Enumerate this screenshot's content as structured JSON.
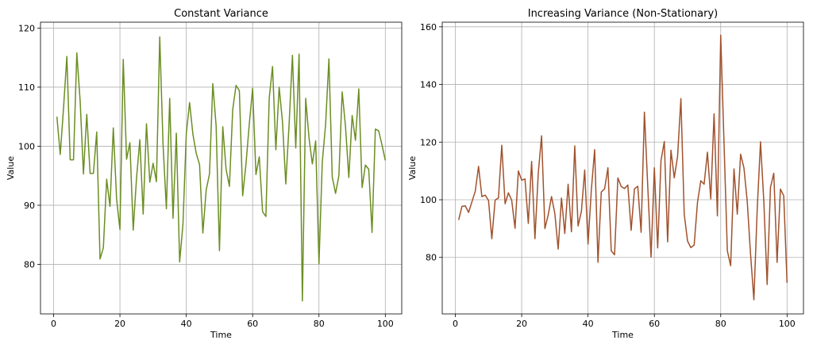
{
  "chart_data": [
    {
      "type": "line",
      "title": "Constant Variance",
      "xlabel": "Time",
      "ylabel": "Value",
      "xlim": [
        -3.95,
        104.95
      ],
      "ylim": [
        71.6,
        121.0
      ],
      "xticks": [
        0,
        20,
        40,
        60,
        80,
        100
      ],
      "yticks": [
        80,
        90,
        100,
        110,
        120
      ],
      "grid": true,
      "color": "#6b8e23",
      "x": [
        1,
        2,
        3,
        4,
        5,
        6,
        7,
        8,
        9,
        10,
        11,
        12,
        13,
        14,
        15,
        16,
        17,
        18,
        19,
        20,
        21,
        22,
        23,
        24,
        25,
        26,
        27,
        28,
        29,
        30,
        31,
        32,
        33,
        34,
        35,
        36,
        37,
        38,
        39,
        40,
        41,
        42,
        43,
        44,
        45,
        46,
        47,
        48,
        49,
        50,
        51,
        52,
        53,
        54,
        55,
        56,
        57,
        58,
        59,
        60,
        61,
        62,
        63,
        64,
        65,
        66,
        67,
        68,
        69,
        70,
        71,
        72,
        73,
        74,
        75,
        76,
        77,
        78,
        79,
        80,
        81,
        82,
        83,
        84,
        85,
        86,
        87,
        88,
        89,
        90,
        91,
        92,
        93,
        94,
        95,
        96,
        97,
        98,
        99,
        100
      ],
      "values": [
        105.0,
        98.6,
        106.5,
        115.2,
        97.7,
        97.7,
        115.8,
        107.7,
        95.3,
        105.4,
        95.4,
        95.4,
        102.4,
        80.9,
        82.8,
        94.4,
        89.8,
        103.1,
        91.0,
        85.9,
        114.7,
        97.8,
        100.6,
        85.8,
        94.6,
        101.1,
        88.5,
        103.8,
        93.9,
        97.1,
        94.0,
        118.5,
        100.2,
        89.4,
        108.1,
        87.8,
        102.2,
        80.4,
        86.8,
        102.1,
        107.4,
        102.0,
        98.8,
        96.9,
        85.3,
        92.6,
        95.3,
        110.6,
        103.4,
        82.3,
        103.3,
        96.1,
        93.2,
        106.2,
        110.3,
        109.4,
        91.6,
        97.0,
        103.8,
        109.8,
        95.2,
        98.2,
        88.9,
        88.1,
        108.1,
        113.5,
        99.4,
        110.0,
        104.1,
        93.6,
        103.8,
        115.4,
        99.7,
        115.6,
        73.8,
        108.1,
        101.4,
        97.0,
        100.9,
        80.1,
        97.3,
        103.7,
        114.8,
        94.8,
        92.0,
        95.0,
        109.2,
        103.3,
        94.7,
        105.2,
        101.0,
        109.7,
        93.0,
        96.8,
        96.1,
        85.4,
        102.9,
        102.6,
        100.2,
        97.6
      ]
    },
    {
      "type": "line",
      "title": "Increasing Variance (Non-Stationary)",
      "xlabel": "Time",
      "ylabel": "Value",
      "xlim": [
        -3.95,
        104.95
      ],
      "ylim": [
        60.4,
        161.6
      ],
      "xticks": [
        0,
        20,
        40,
        60,
        80,
        100
      ],
      "yticks": [
        80,
        100,
        120,
        140,
        160
      ],
      "grid": true,
      "color": "#a0522d",
      "x": [
        1,
        2,
        3,
        4,
        5,
        6,
        7,
        8,
        9,
        10,
        11,
        12,
        13,
        14,
        15,
        16,
        17,
        18,
        19,
        20,
        21,
        22,
        23,
        24,
        25,
        26,
        27,
        28,
        29,
        30,
        31,
        32,
        33,
        34,
        35,
        36,
        37,
        38,
        39,
        40,
        41,
        42,
        43,
        44,
        45,
        46,
        47,
        48,
        49,
        50,
        51,
        52,
        53,
        54,
        55,
        56,
        57,
        58,
        59,
        60,
        61,
        62,
        63,
        64,
        65,
        66,
        67,
        68,
        69,
        70,
        71,
        72,
        73,
        74,
        75,
        76,
        77,
        78,
        79,
        80,
        81,
        82,
        83,
        84,
        85,
        86,
        87,
        88,
        89,
        90,
        91,
        92,
        93,
        94,
        95,
        96,
        97,
        98,
        99,
        100
      ],
      "values": [
        93.0,
        97.7,
        97.9,
        95.6,
        99.3,
        102.9,
        111.6,
        101.1,
        101.6,
        99.8,
        86.5,
        99.9,
        100.6,
        118.9,
        98.6,
        102.4,
        99.8,
        90.1,
        110.0,
        106.8,
        107.2,
        91.8,
        113.3,
        86.5,
        109.2,
        122.2,
        90.0,
        94.8,
        101.1,
        95.2,
        82.9,
        100.6,
        88.3,
        105.4,
        88.9,
        118.7,
        90.9,
        95.9,
        110.3,
        84.6,
        103.4,
        117.4,
        78.3,
        102.7,
        103.8,
        111.1,
        82.3,
        80.9,
        107.6,
        104.6,
        103.9,
        105.1,
        89.4,
        103.8,
        104.7,
        88.7,
        130.4,
        104.8,
        80.1,
        111.1,
        83.3,
        113.6,
        120.2,
        85.4,
        117.2,
        107.6,
        115.1,
        135.1,
        95.0,
        85.7,
        83.4,
        84.3,
        99.1,
        106.6,
        105.4,
        116.5,
        100.3,
        129.8,
        94.4,
        157.1,
        119.7,
        82.3,
        77.1,
        110.7,
        95.0,
        115.8,
        111.1,
        99.4,
        81.0,
        65.3,
        96.6,
        120.1,
        99.4,
        70.6,
        104.3,
        109.2,
        78.3,
        103.7,
        101.4,
        71.2
      ]
    }
  ]
}
